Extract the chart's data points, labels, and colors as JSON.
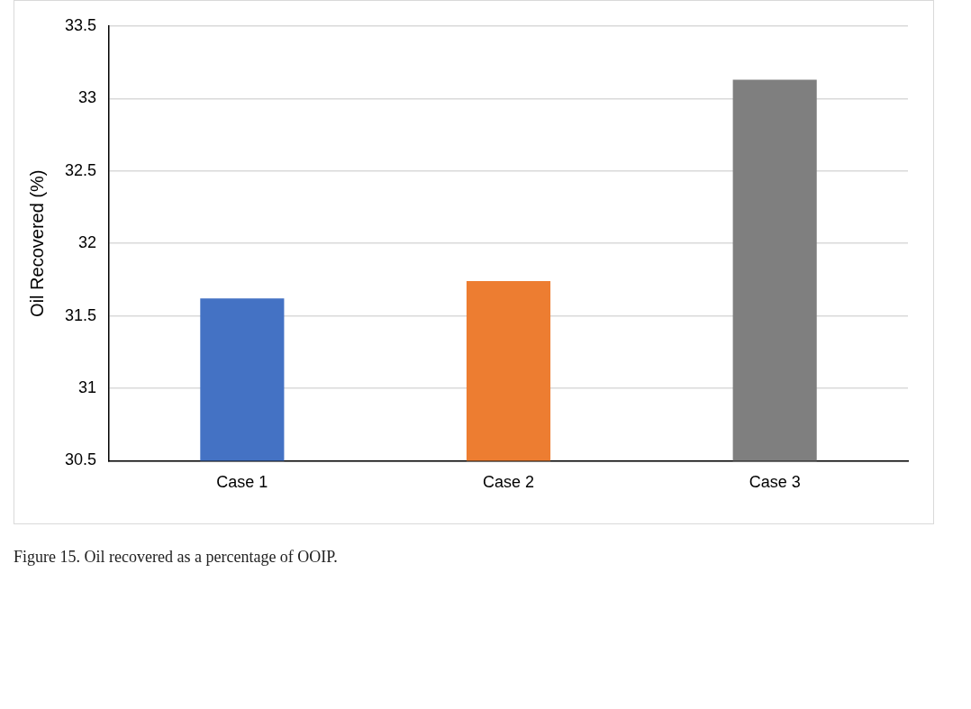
{
  "chart_data": {
    "type": "bar",
    "ylabel": "Oil Recovered (%)",
    "categories": [
      "Case 1",
      "Case 2",
      "Case 3"
    ],
    "values": [
      31.62,
      31.74,
      33.13
    ],
    "colors": [
      "#4472c4",
      "#ed7d31",
      "#7f7f7f"
    ],
    "ylim": [
      30.5,
      33.5
    ],
    "yticks": [
      30.5,
      31,
      31.5,
      32,
      32.5,
      33,
      33.5
    ],
    "grid": "y",
    "annotations": [
      "Figure 15. Oil recovered as a percentage of OOIP."
    ]
  }
}
